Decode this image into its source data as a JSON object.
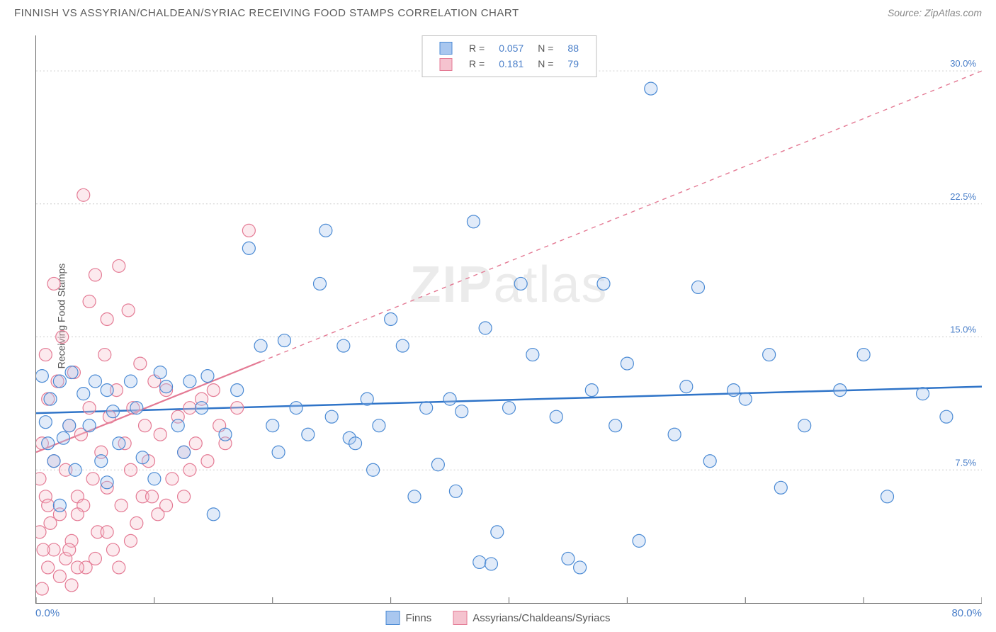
{
  "title": "FINNISH VS ASSYRIAN/CHALDEAN/SYRIAC RECEIVING FOOD STAMPS CORRELATION CHART",
  "source_prefix": "Source: ",
  "source": "ZipAtlas.com",
  "watermark": "ZIPatlas",
  "ylabel": "Receiving Food Stamps",
  "chart": {
    "type": "scatter",
    "background_color": "#ffffff",
    "grid_color": "#cccccc",
    "border_color": "#666666",
    "xlim": [
      0,
      80
    ],
    "ylim": [
      0,
      32
    ],
    "xticks": [
      0,
      10,
      20,
      30,
      40,
      50,
      60,
      70,
      80
    ],
    "yticks": [
      7.5,
      15.0,
      22.5,
      30.0
    ],
    "ytick_labels": [
      "7.5%",
      "15.0%",
      "22.5%",
      "30.0%"
    ],
    "x_origin_label": "0.0%",
    "x_max_label": "80.0%",
    "marker_radius": 9,
    "marker_stroke_width": 1.2,
    "marker_fill_opacity": 0.35,
    "axis_label_color": "#4a7fc9",
    "series": [
      {
        "name": "Finns",
        "fill": "#a9c7ef",
        "stroke": "#4a8ad4",
        "trend": {
          "y_at_x0": 10.7,
          "y_at_xmax": 12.2,
          "dashed": false,
          "color": "#2f74c8",
          "width": 2.5,
          "solid_until_x": 80
        },
        "points": [
          [
            0.5,
            12.8
          ],
          [
            0.8,
            10.2
          ],
          [
            1.0,
            9.0
          ],
          [
            1.2,
            11.5
          ],
          [
            1.5,
            8.0
          ],
          [
            2.0,
            12.5
          ],
          [
            2.3,
            9.3
          ],
          [
            2.8,
            10.0
          ],
          [
            3.0,
            13.0
          ],
          [
            3.3,
            7.5
          ],
          [
            4.0,
            11.8
          ],
          [
            4.5,
            10.0
          ],
          [
            5.0,
            12.5
          ],
          [
            5.5,
            8.0
          ],
          [
            6.0,
            12.0
          ],
          [
            6.5,
            10.8
          ],
          [
            7.0,
            9.0
          ],
          [
            8.0,
            12.5
          ],
          [
            8.5,
            11.0
          ],
          [
            9.0,
            8.2
          ],
          [
            10.0,
            7.0
          ],
          [
            10.5,
            13.0
          ],
          [
            11.0,
            12.2
          ],
          [
            12.0,
            10.0
          ],
          [
            12.5,
            8.5
          ],
          [
            13.0,
            12.5
          ],
          [
            14.0,
            11.0
          ],
          [
            15.0,
            5.0
          ],
          [
            16.0,
            9.5
          ],
          [
            17.0,
            12.0
          ],
          [
            18.0,
            20.0
          ],
          [
            19.0,
            14.5
          ],
          [
            20.0,
            10.0
          ],
          [
            20.5,
            8.5
          ],
          [
            21.0,
            14.8
          ],
          [
            22.0,
            11.0
          ],
          [
            23.0,
            9.5
          ],
          [
            24.0,
            18.0
          ],
          [
            24.5,
            21.0
          ],
          [
            25.0,
            10.5
          ],
          [
            26.0,
            14.5
          ],
          [
            26.5,
            9.3
          ],
          [
            27.0,
            9.0
          ],
          [
            28.0,
            11.5
          ],
          [
            28.5,
            7.5
          ],
          [
            29.0,
            10.0
          ],
          [
            30.0,
            16.0
          ],
          [
            31.0,
            14.5
          ],
          [
            32.0,
            6.0
          ],
          [
            33.0,
            11.0
          ],
          [
            34.0,
            7.8
          ],
          [
            35.0,
            11.5
          ],
          [
            35.5,
            6.3
          ],
          [
            36.0,
            10.8
          ],
          [
            37.0,
            21.5
          ],
          [
            37.5,
            2.3
          ],
          [
            38.0,
            15.5
          ],
          [
            39.0,
            4.0
          ],
          [
            40.0,
            11.0
          ],
          [
            41.0,
            18.0
          ],
          [
            42.0,
            14.0
          ],
          [
            44.0,
            10.5
          ],
          [
            45.0,
            2.5
          ],
          [
            46.0,
            2.0
          ],
          [
            47.0,
            12.0
          ],
          [
            48.0,
            18.0
          ],
          [
            49.0,
            10.0
          ],
          [
            50.0,
            13.5
          ],
          [
            51.0,
            3.5
          ],
          [
            52.0,
            29.0
          ],
          [
            54.0,
            9.5
          ],
          [
            55.0,
            12.2
          ],
          [
            56.0,
            17.8
          ],
          [
            57.0,
            8.0
          ],
          [
            59.0,
            12.0
          ],
          [
            60.0,
            11.5
          ],
          [
            62.0,
            14.0
          ],
          [
            63.0,
            6.5
          ],
          [
            65.0,
            10.0
          ],
          [
            68.0,
            12.0
          ],
          [
            70.0,
            14.0
          ],
          [
            72.0,
            6.0
          ],
          [
            75.0,
            11.8
          ],
          [
            77.0,
            10.5
          ],
          [
            2.0,
            5.5
          ],
          [
            6.0,
            6.8
          ],
          [
            14.5,
            12.8
          ],
          [
            38.5,
            2.2
          ]
        ]
      },
      {
        "name": "Assyrians/Chaldeans/Syriacs",
        "fill": "#f5c3cf",
        "stroke": "#e47a94",
        "trend": {
          "y_at_x0": 8.5,
          "y_at_xmax": 30.0,
          "dashed": true,
          "color": "#e47a94",
          "width": 2.2,
          "solid_until_x": 19
        },
        "points": [
          [
            0.3,
            7.0
          ],
          [
            0.5,
            9.0
          ],
          [
            0.8,
            6.0
          ],
          [
            1.0,
            11.5
          ],
          [
            1.2,
            4.5
          ],
          [
            1.5,
            8.0
          ],
          [
            1.8,
            12.5
          ],
          [
            2.0,
            5.0
          ],
          [
            2.2,
            15.0
          ],
          [
            2.5,
            7.5
          ],
          [
            2.8,
            10.0
          ],
          [
            3.0,
            3.5
          ],
          [
            3.2,
            13.0
          ],
          [
            3.5,
            6.0
          ],
          [
            3.8,
            9.5
          ],
          [
            4.0,
            23.0
          ],
          [
            4.2,
            2.0
          ],
          [
            4.5,
            11.0
          ],
          [
            4.8,
            7.0
          ],
          [
            5.0,
            18.5
          ],
          [
            5.2,
            4.0
          ],
          [
            5.5,
            8.5
          ],
          [
            5.8,
            14.0
          ],
          [
            6.0,
            6.5
          ],
          [
            6.2,
            10.5
          ],
          [
            6.5,
            3.0
          ],
          [
            6.8,
            12.0
          ],
          [
            7.0,
            19.0
          ],
          [
            7.2,
            5.5
          ],
          [
            7.5,
            9.0
          ],
          [
            7.8,
            16.5
          ],
          [
            8.0,
            7.5
          ],
          [
            8.2,
            11.0
          ],
          [
            8.5,
            4.5
          ],
          [
            8.8,
            13.5
          ],
          [
            9.0,
            6.0
          ],
          [
            9.2,
            10.0
          ],
          [
            9.5,
            8.0
          ],
          [
            10.0,
            12.5
          ],
          [
            10.3,
            5.0
          ],
          [
            10.5,
            9.5
          ],
          [
            11.0,
            12.0
          ],
          [
            11.5,
            7.0
          ],
          [
            12.0,
            10.5
          ],
          [
            12.5,
            8.5
          ],
          [
            13.0,
            11.0
          ],
          [
            13.5,
            9.0
          ],
          [
            14.0,
            11.5
          ],
          [
            14.5,
            8.0
          ],
          [
            15.0,
            12.0
          ],
          [
            15.5,
            10.0
          ],
          [
            16.0,
            9.0
          ],
          [
            17.0,
            11.0
          ],
          [
            18.0,
            21.0
          ],
          [
            1.0,
            2.0
          ],
          [
            1.5,
            3.0
          ],
          [
            2.0,
            1.5
          ],
          [
            2.5,
            2.5
          ],
          [
            3.0,
            1.0
          ],
          [
            3.5,
            2.0
          ],
          [
            4.0,
            5.5
          ],
          [
            5.0,
            2.5
          ],
          [
            6.0,
            4.0
          ],
          [
            7.0,
            2.0
          ],
          [
            8.0,
            3.5
          ],
          [
            0.5,
            0.8
          ],
          [
            1.0,
            5.5
          ],
          [
            4.5,
            17.0
          ],
          [
            6.0,
            16.0
          ],
          [
            0.8,
            14.0
          ],
          [
            1.5,
            18.0
          ],
          [
            2.8,
            3.0
          ],
          [
            3.5,
            5.0
          ],
          [
            9.8,
            6.0
          ],
          [
            11.0,
            5.5
          ],
          [
            12.5,
            6.0
          ],
          [
            13.0,
            7.5
          ],
          [
            0.3,
            4.0
          ],
          [
            0.6,
            3.0
          ]
        ]
      }
    ]
  },
  "legend_top": {
    "rows": [
      {
        "swatch_fill": "#a9c7ef",
        "swatch_stroke": "#4a8ad4",
        "r_label": "R =",
        "r_val": "0.057",
        "n_label": "N =",
        "n_val": "88"
      },
      {
        "swatch_fill": "#f5c3cf",
        "swatch_stroke": "#e47a94",
        "r_label": "R =",
        "r_val": "0.181",
        "n_label": "N =",
        "n_val": "79"
      }
    ]
  },
  "legend_bottom": {
    "items": [
      {
        "swatch_fill": "#a9c7ef",
        "swatch_stroke": "#4a8ad4",
        "label": "Finns"
      },
      {
        "swatch_fill": "#f5c3cf",
        "swatch_stroke": "#e47a94",
        "label": "Assyrians/Chaldeans/Syriacs"
      }
    ]
  }
}
